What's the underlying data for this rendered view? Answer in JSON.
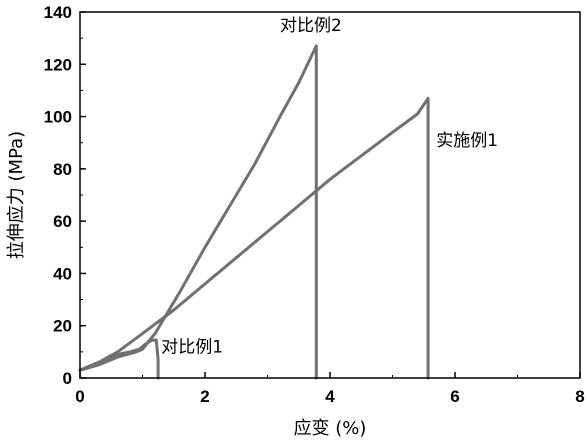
{
  "chart_data": {
    "type": "line",
    "xlabel": "应变 (%)",
    "ylabel": "拉伸应力 (MPa)",
    "xlim": [
      0,
      8
    ],
    "ylim": [
      0,
      140
    ],
    "xticks": [
      "0",
      "2",
      "4",
      "6",
      "8"
    ],
    "yticks": [
      "0",
      "20",
      "40",
      "60",
      "80",
      "100",
      "120",
      "140"
    ],
    "grid": false,
    "series_color": "#707070",
    "series": [
      {
        "name": "对比例2",
        "x": [
          0,
          0.3,
          0.6,
          0.9,
          1.0,
          1.2,
          1.6,
          2.0,
          2.4,
          2.8,
          3.2,
          3.5,
          3.7,
          3.78,
          3.78,
          3.78
        ],
        "y": [
          3,
          5,
          8,
          10,
          11,
          17,
          33,
          50,
          66,
          82,
          100,
          113,
          123,
          127,
          60,
          0
        ]
      },
      {
        "name": "实施例1",
        "x": [
          0,
          0.3,
          0.6,
          1.0,
          1.5,
          2.0,
          2.5,
          3.0,
          3.5,
          4.0,
          4.5,
          5.0,
          5.4,
          5.57,
          5.57,
          5.57
        ],
        "y": [
          3,
          6,
          10,
          17,
          26,
          36,
          46,
          56,
          66,
          76,
          85,
          94,
          101,
          107,
          50,
          0
        ]
      },
      {
        "name": "对比例1",
        "x": [
          0,
          0.2,
          0.4,
          0.6,
          0.8,
          0.95,
          1.05,
          1.15,
          1.22,
          1.25,
          1.25
        ],
        "y": [
          3,
          5,
          7,
          9,
          10,
          11,
          13,
          14.5,
          14.5,
          7,
          0
        ]
      }
    ],
    "annotations": [
      {
        "text": "对比例2",
        "x": 3.2,
        "y": 135
      },
      {
        "text": "实施例1",
        "x": 5.7,
        "y": 91
      },
      {
        "text": "对比例1",
        "x": 1.3,
        "y": 12
      }
    ]
  }
}
